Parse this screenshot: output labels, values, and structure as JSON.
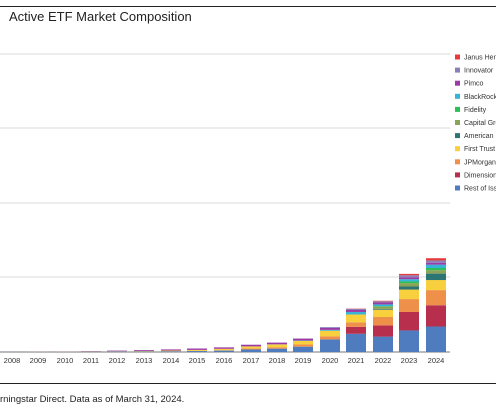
{
  "chart_data": {
    "type": "bar",
    "stacked": true,
    "title": "Active ETF Market Composition",
    "xlabel": "",
    "ylabel": "",
    "grid": true,
    "legend_position": "right",
    "categories": [
      "2008",
      "2009",
      "2010",
      "2011",
      "2012",
      "2013",
      "2014",
      "2015",
      "2016",
      "2017",
      "2018",
      "2019",
      "2020",
      "2021",
      "2022",
      "2023",
      "2024"
    ],
    "series": [
      {
        "name": "Rest of Iss",
        "color": "#4f7bbf",
        "values": [
          0.2,
          0.4,
          0.8,
          1.2,
          1.8,
          2.2,
          2.8,
          3.5,
          5,
          9,
          12,
          19,
          45,
          65,
          55,
          77,
          91
        ]
      },
      {
        "name": "Dimension",
        "color": "#b82f4e",
        "values": [
          0,
          0,
          0,
          0,
          0,
          0,
          0,
          0,
          0,
          0,
          0,
          0,
          0,
          25,
          40,
          66,
          76
        ]
      },
      {
        "name": "JPMorgan",
        "color": "#ee8f4a",
        "values": [
          0,
          0,
          0,
          0,
          0,
          0,
          0,
          0.5,
          1.5,
          4,
          5,
          8,
          11,
          16,
          30,
          46,
          54
        ]
      },
      {
        "name": "First Trust",
        "color": "#f8cf3d",
        "values": [
          0,
          0.3,
          0.5,
          0.8,
          1.2,
          1.8,
          2.5,
          3.5,
          5,
          7,
          10,
          13,
          20,
          28,
          26,
          34,
          36
        ]
      },
      {
        "name": "American",
        "color": "#2d7474",
        "values": [
          0,
          0,
          0,
          0,
          0,
          0,
          0,
          0,
          0,
          0,
          0,
          0,
          0,
          0,
          3,
          11,
          23
        ]
      },
      {
        "name": "Capital Gro",
        "color": "#8ba354",
        "values": [
          0,
          0,
          0,
          0,
          0,
          0,
          0,
          0,
          0,
          0,
          0,
          0,
          0,
          0,
          8,
          12,
          12
        ]
      },
      {
        "name": "Fidelity",
        "color": "#2dbf57",
        "values": [
          0,
          0,
          0,
          0,
          0,
          0,
          0,
          0,
          0,
          0,
          0,
          0,
          0,
          0,
          2,
          6,
          8
        ]
      },
      {
        "name": "BlackRock",
        "color": "#35b4d8",
        "values": [
          0,
          0,
          0,
          0,
          0,
          0,
          0,
          0,
          0,
          0,
          0.5,
          1,
          3,
          9,
          6,
          8,
          12
        ]
      },
      {
        "name": "Pimco",
        "color": "#9a3aa4",
        "values": [
          0.2,
          0.3,
          0.5,
          1,
          2,
          3,
          4,
          5,
          5,
          6,
          6,
          7,
          7,
          7,
          7,
          7,
          7
        ]
      },
      {
        "name": "Innovator",
        "color": "#8a7fb8",
        "values": [
          0,
          0,
          0,
          0,
          0,
          0,
          0,
          0,
          0,
          0,
          0,
          0,
          3,
          4,
          4,
          7,
          8
        ]
      },
      {
        "name": "Janus Hen",
        "color": "#e83a3a",
        "values": [
          0,
          0,
          0,
          0,
          0,
          0,
          0,
          0,
          0,
          0,
          0,
          0,
          0,
          1,
          2,
          5,
          8
        ]
      }
    ]
  },
  "source_text": "rningstar Direct. Data as of March 31, 2024."
}
